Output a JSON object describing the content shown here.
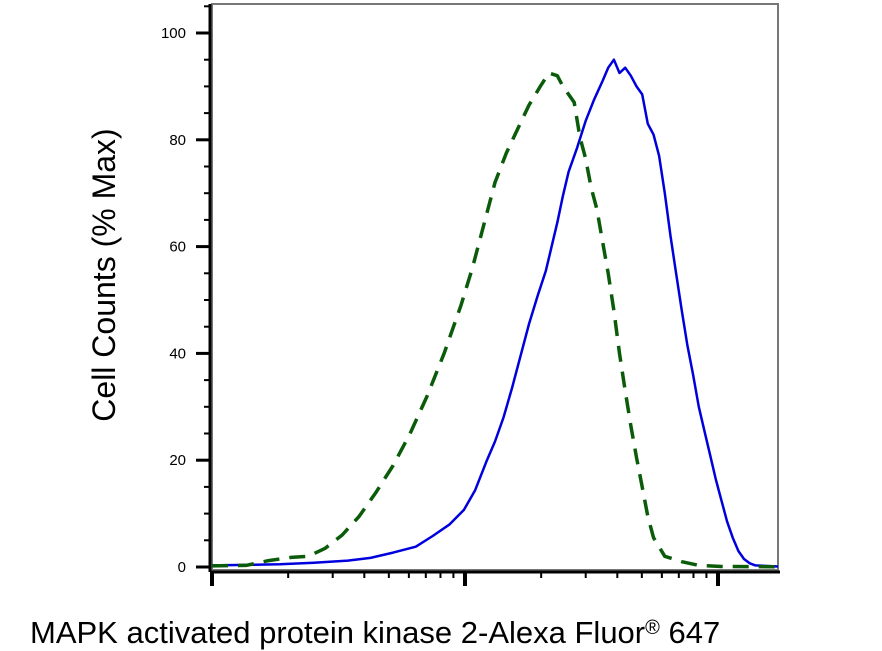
{
  "chart_data": {
    "type": "line",
    "title": "",
    "ylabel": "Cell Counts (% Max)",
    "xlabel_parts": {
      "main": "MAPK activated protein kinase 2-Alexa Fluor",
      "superscript": "®",
      "suffix": " 647"
    },
    "xscale": "log",
    "xlim": [
      0,
      100
    ],
    "ylim": [
      0,
      100
    ],
    "y_ticks": [
      0,
      20,
      40,
      60,
      80,
      100
    ],
    "y_tick_labels": [
      "0",
      "20",
      "40",
      "60",
      "80",
      "100"
    ],
    "x_tick_labels": [],
    "grid": false,
    "legend": "none",
    "series": [
      {
        "color": "#0000dd",
        "style": "solid",
        "points": [
          [
            0,
            0.3
          ],
          [
            6,
            0.4
          ],
          [
            12,
            0.5
          ],
          [
            18,
            0.8
          ],
          [
            24,
            1.2
          ],
          [
            28,
            1.7
          ],
          [
            32,
            2.7
          ],
          [
            36,
            3.8
          ],
          [
            39,
            5.8
          ],
          [
            42,
            8.0
          ],
          [
            44.5,
            10.7
          ],
          [
            46.5,
            14.4
          ],
          [
            48.5,
            19.8
          ],
          [
            50,
            23.5
          ],
          [
            51.5,
            28.0
          ],
          [
            53,
            33.5
          ],
          [
            54.5,
            39.5
          ],
          [
            56,
            45.5
          ],
          [
            57.5,
            50.7
          ],
          [
            59,
            55.5
          ],
          [
            60,
            60.0
          ],
          [
            61,
            64.5
          ],
          [
            62,
            69.5
          ],
          [
            63,
            74.0
          ],
          [
            64.5,
            78.5
          ],
          [
            66,
            83.5
          ],
          [
            67.5,
            87.5
          ],
          [
            69,
            91.0
          ],
          [
            70,
            93.5
          ],
          [
            71,
            95.0
          ],
          [
            72,
            92.5
          ],
          [
            73,
            93.5
          ],
          [
            74,
            92.0
          ],
          [
            75,
            90.0
          ],
          [
            76,
            88.5
          ],
          [
            77,
            83.0
          ],
          [
            78,
            81.0
          ],
          [
            79,
            77.0
          ],
          [
            80,
            70.0
          ],
          [
            81,
            62.0
          ],
          [
            82,
            55.0
          ],
          [
            83,
            48.0
          ],
          [
            84,
            41.5
          ],
          [
            85,
            36.0
          ],
          [
            86,
            30.0
          ],
          [
            87,
            25.5
          ],
          [
            88,
            21.0
          ],
          [
            89,
            16.5
          ],
          [
            90,
            12.5
          ],
          [
            91,
            8.5
          ],
          [
            92,
            5.5
          ],
          [
            93,
            3.0
          ],
          [
            94,
            1.5
          ],
          [
            95,
            0.7
          ],
          [
            96,
            0.3
          ],
          [
            100,
            0.1
          ]
        ]
      },
      {
        "color": "#0a5c0a",
        "style": "dashed",
        "points": [
          [
            0,
            0.2
          ],
          [
            6,
            0.3
          ],
          [
            10,
            1.2
          ],
          [
            14,
            1.8
          ],
          [
            17,
            2.0
          ],
          [
            20,
            3.5
          ],
          [
            23,
            6.0
          ],
          [
            26,
            9.5
          ],
          [
            29,
            14.0
          ],
          [
            32,
            19.0
          ],
          [
            35,
            25.0
          ],
          [
            38,
            32.0
          ],
          [
            41,
            40.0
          ],
          [
            44,
            49.0
          ],
          [
            46,
            56.0
          ],
          [
            48,
            64.0
          ],
          [
            50,
            72.0
          ],
          [
            52,
            77.5
          ],
          [
            54,
            82.0
          ],
          [
            56,
            86.5
          ],
          [
            58,
            90.0
          ],
          [
            59.5,
            92.5
          ],
          [
            61,
            92.0
          ],
          [
            62,
            90.0
          ],
          [
            63,
            88.5
          ],
          [
            64,
            87.0
          ],
          [
            65,
            80.5
          ],
          [
            66,
            76.5
          ],
          [
            67,
            71.0
          ],
          [
            68,
            67.0
          ],
          [
            69,
            61.0
          ],
          [
            70,
            55.0
          ],
          [
            71,
            48.0
          ],
          [
            72,
            40.0
          ],
          [
            73,
            33.0
          ],
          [
            74,
            26.5
          ],
          [
            75,
            20.5
          ],
          [
            76,
            15.0
          ],
          [
            77,
            9.5
          ],
          [
            78,
            5.5
          ],
          [
            80,
            2.0
          ],
          [
            83,
            1.0
          ],
          [
            86,
            0.3
          ],
          [
            90,
            0.1
          ],
          [
            100,
            0.05
          ]
        ]
      }
    ]
  }
}
